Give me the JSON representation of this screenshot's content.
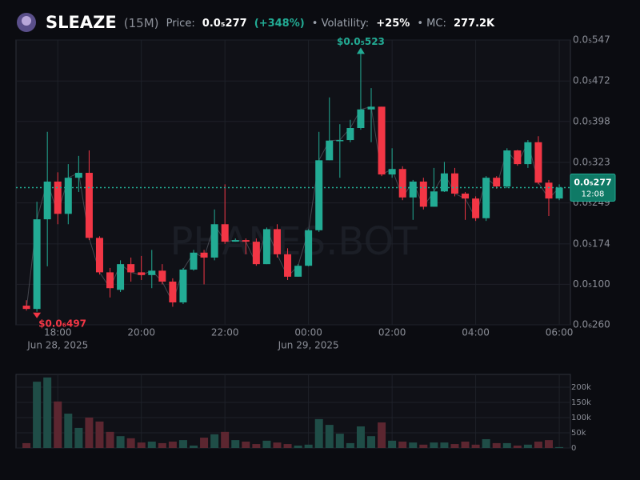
{
  "header": {
    "symbol": "SLEAZE",
    "interval": "(15M)",
    "price_label": "Price:",
    "price": "0.0₅277",
    "change": "(+348%)",
    "volatility_label": "• Volatility:",
    "volatility": "+25%",
    "mc_label": "• MC:",
    "mc": "277.2K"
  },
  "chart_data": {
    "type": "candlestick",
    "watermark": "PHANES.BOT",
    "up_color": "#22ab94",
    "down_color": "#f23645",
    "volume_up_color": "#1f4d47",
    "volume_down_color": "#5c2630",
    "grid": true,
    "x": [
      "2025-06-28T17:15",
      "2025-06-28T17:30",
      "2025-06-28T17:45",
      "2025-06-28T18:00",
      "2025-06-28T18:15",
      "2025-06-28T18:30",
      "2025-06-28T18:45",
      "2025-06-28T19:00",
      "2025-06-28T19:15",
      "2025-06-28T19:30",
      "2025-06-28T19:45",
      "2025-06-28T20:00",
      "2025-06-28T20:15",
      "2025-06-28T20:30",
      "2025-06-28T20:45",
      "2025-06-28T21:00",
      "2025-06-28T21:15",
      "2025-06-28T21:30",
      "2025-06-28T21:45",
      "2025-06-28T22:00",
      "2025-06-28T22:15",
      "2025-06-28T22:30",
      "2025-06-28T22:45",
      "2025-06-28T23:00",
      "2025-06-28T23:15",
      "2025-06-28T23:30",
      "2025-06-28T23:45",
      "2025-06-29T00:00",
      "2025-06-29T00:15",
      "2025-06-29T00:30",
      "2025-06-29T00:45",
      "2025-06-29T01:00",
      "2025-06-29T01:15",
      "2025-06-29T01:30",
      "2025-06-29T01:45",
      "2025-06-29T02:00",
      "2025-06-29T02:15",
      "2025-06-29T02:30",
      "2025-06-29T02:45",
      "2025-06-29T03:00",
      "2025-06-29T03:15",
      "2025-06-29T03:30",
      "2025-06-29T03:45",
      "2025-06-29T04:00",
      "2025-06-29T04:15",
      "2025-06-29T04:30",
      "2025-06-29T04:45",
      "2025-06-29T05:00",
      "2025-06-29T05:15",
      "2025-06-29T05:30",
      "2025-06-29T05:45",
      "2025-06-29T06:00"
    ],
    "open": [
      6.1e-07,
      5.5e-07,
      2.19e-06,
      2.88e-06,
      2.29e-06,
      2.95e-06,
      3.04e-06,
      1.85e-06,
      1.22e-06,
      9e-07,
      1.37e-06,
      1.22e-06,
      1.17e-06,
      1.25e-06,
      1.05e-06,
      6.7e-07,
      1.27e-06,
      1.58e-06,
      1.49e-06,
      2.1e-06,
      1.78e-06,
      1.81e-06,
      1.78e-06,
      1.37e-06,
      2.01e-06,
      1.55e-06,
      1.14e-06,
      1.34e-06,
      1.99e-06,
      3.27e-06,
      3.63e-06,
      3.64e-06,
      3.86e-06,
      4.2e-06,
      4.25e-06,
      3.01e-06,
      3.11e-06,
      2.59e-06,
      2.88e-06,
      2.42e-06,
      2.7e-06,
      3.03e-06,
      2.66e-06,
      2.57e-06,
      2.21e-06,
      2.95e-06,
      2.79e-06,
      3.45e-06,
      3.2e-06,
      3.6e-06,
      2.86e-06,
      2.57e-06
    ],
    "high": [
      7.1e-07,
      2.51e-06,
      3.79e-06,
      3.05e-06,
      3.2e-06,
      3.35e-06,
      3.45e-06,
      1.88e-06,
      1.3e-06,
      1.44e-06,
      1.49e-06,
      1.52e-06,
      1.63e-06,
      1.37e-06,
      1.11e-06,
      1.3e-06,
      1.63e-06,
      1.63e-06,
      2.37e-06,
      2.83e-06,
      1.84e-06,
      1.84e-06,
      1.84e-06,
      2.04e-06,
      2.1e-06,
      1.66e-06,
      1.37e-06,
      2.01e-06,
      3.79e-06,
      4.42e-06,
      3.93e-06,
      4.01e-06,
      5.23e-06,
      4.59e-06,
      4.25e-06,
      3.49e-06,
      3.16e-06,
      2.91e-06,
      2.95e-06,
      3.13e-06,
      3.24e-06,
      3.13e-06,
      2.69e-06,
      2.61e-06,
      2.98e-06,
      2.98e-06,
      3.49e-06,
      3.46e-06,
      3.64e-06,
      3.71e-06,
      2.91e-06,
      2.83e-06
    ],
    "low": [
      5.2e-07,
      4.97e-07,
      1.33e-06,
      2.1e-06,
      2.1e-06,
      2.69e-06,
      1.81e-06,
      1.18e-06,
      7.6e-07,
      8.6e-07,
      1.05e-06,
      1.08e-06,
      9.3e-07,
      1e-06,
      5.9e-07,
      6.4e-07,
      1.25e-06,
      1e-06,
      1.44e-06,
      1.74e-06,
      1.78e-06,
      1.55e-06,
      1.34e-06,
      1.37e-06,
      1.49e-06,
      1.08e-06,
      1.14e-06,
      1.33e-06,
      1.96e-06,
      3.27e-06,
      2.95e-06,
      3.6e-06,
      3.83e-06,
      3.6e-06,
      2.98e-06,
      2.95e-06,
      2.54e-06,
      2.18e-06,
      2.37e-06,
      2.42e-06,
      2.69e-06,
      2.61e-06,
      2.18e-06,
      2.16e-06,
      2.16e-06,
      2.75e-06,
      2.76e-06,
      3.17e-06,
      3.13e-06,
      2.83e-06,
      2.25e-06,
      2.54e-06
    ],
    "close": [
      5.5e-07,
      2.19e-06,
      2.88e-06,
      2.29e-06,
      2.95e-06,
      3.04e-06,
      1.85e-06,
      1.22e-06,
      9.3e-07,
      1.37e-06,
      1.22e-06,
      1.17e-06,
      1.25e-06,
      1.05e-06,
      6.7e-07,
      1.27e-06,
      1.58e-06,
      1.49e-06,
      2.1e-06,
      1.78e-06,
      1.81e-06,
      1.78e-06,
      1.37e-06,
      2.01e-06,
      1.55e-06,
      1.14e-06,
      1.34e-06,
      1.99e-06,
      3.27e-06,
      3.63e-06,
      3.64e-06,
      3.86e-06,
      4.2e-06,
      4.25e-06,
      3.01e-06,
      3.11e-06,
      2.59e-06,
      2.88e-06,
      2.42e-06,
      2.7e-06,
      3.03e-06,
      2.66e-06,
      2.57e-06,
      2.21e-06,
      2.95e-06,
      2.79e-06,
      3.45e-06,
      3.2e-06,
      3.6e-06,
      2.86e-06,
      2.57e-06,
      2.77e-06
    ],
    "volume": [
      16000,
      218000,
      232000,
      153000,
      113000,
      66000,
      100000,
      87000,
      53000,
      39000,
      32000,
      18000,
      21000,
      16000,
      21000,
      26000,
      8000,
      34000,
      45000,
      53000,
      26000,
      21000,
      13000,
      24000,
      18000,
      13000,
      8000,
      11000,
      95000,
      76000,
      47000,
      16000,
      71000,
      39000,
      84000,
      24000,
      21000,
      18000,
      11000,
      18000,
      18000,
      13000,
      21000,
      11000,
      29000,
      16000,
      16000,
      8000,
      11000,
      21000,
      26000,
      3000
    ],
    "xlim": [
      "2025-06-28T17:00",
      "2025-06-29T06:16"
    ],
    "xticks": [
      {
        "value": "2025-06-28T18:00",
        "label": "18:00"
      },
      {
        "value": "2025-06-28T20:00",
        "label": "20:00"
      },
      {
        "value": "2025-06-28T22:00",
        "label": "22:00"
      },
      {
        "value": "2025-06-29T00:00",
        "label": "00:00"
      },
      {
        "value": "2025-06-29T02:00",
        "label": "02:00"
      },
      {
        "value": "2025-06-29T04:00",
        "label": "04:00"
      },
      {
        "value": "2025-06-29T06:00",
        "label": "06:00"
      }
    ],
    "x_date_labels": [
      {
        "value": "2025-06-28T18:00",
        "label": "Jun 28, 2025"
      },
      {
        "value": "2025-06-29T00:00",
        "label": "Jun 29, 2025"
      }
    ],
    "ylim": [
      2.6e-07,
      5.47e-06
    ],
    "yticks": [
      {
        "value": 5.47e-06,
        "label": "0.0₅547"
      },
      {
        "value": 4.72e-06,
        "label": "0.0₅472"
      },
      {
        "value": 3.98e-06,
        "label": "0.0₅398"
      },
      {
        "value": 3.23e-06,
        "label": "0.0₅323"
      },
      {
        "value": 2.49e-06,
        "label": "0.0₅249"
      },
      {
        "value": 1.74e-06,
        "label": "0.0₅174"
      },
      {
        "value": 1e-06,
        "label": "0.0₅100"
      },
      {
        "value": 2.6e-07,
        "label": "0.0₆260"
      }
    ],
    "volume_ylim": [
      0,
      242000
    ],
    "volume_yticks": [
      0,
      {
        "value": 50000,
        "label": "50k"
      },
      {
        "value": 100000,
        "label": "100k"
      },
      {
        "value": 150000,
        "label": "150k"
      },
      {
        "value": 200000,
        "label": "200k"
      }
    ],
    "last_price": {
      "value": 2.77e-06,
      "label": "0.0₅277"
    },
    "countdown": "12:08",
    "annotations": [
      {
        "label": "$0.0₅523",
        "value": 5.23e-06,
        "x": "2025-06-29T01:15",
        "kind": "high"
      },
      {
        "label": "$0.0₆497",
        "value": 4.97e-07,
        "x": "2025-06-28T17:30",
        "kind": "low"
      }
    ]
  }
}
